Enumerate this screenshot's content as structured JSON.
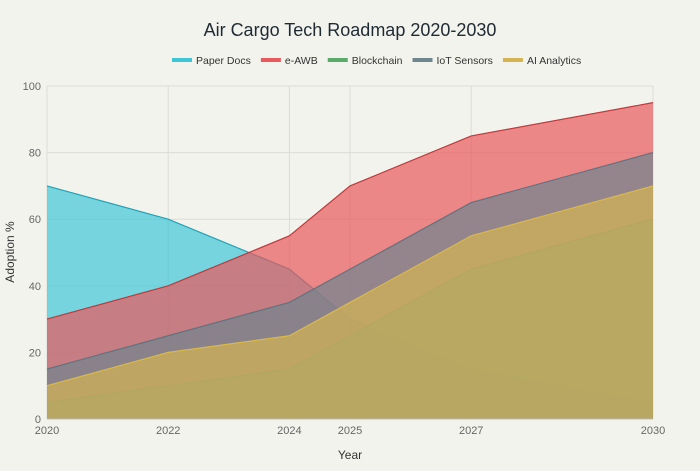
{
  "chart_data": {
    "type": "area",
    "title": "Air Cargo Tech Roadmap 2020-2030",
    "xlabel": "Year",
    "ylabel": "Adoption %",
    "x": [
      2020,
      2022,
      2024,
      2025,
      2027,
      2030
    ],
    "xlim": [
      2020,
      2030
    ],
    "ylim": [
      0,
      100
    ],
    "yticks": [
      0,
      20,
      40,
      60,
      80,
      100
    ],
    "grid": true,
    "legend_placement": "top-center",
    "background": "#f3f3ee",
    "series": [
      {
        "name": "Paper Docs",
        "values": [
          70,
          60,
          45,
          30,
          15,
          5
        ],
        "line": "#1fa3b5",
        "fill": "#3fc6d6"
      },
      {
        "name": "e-AWB",
        "values": [
          30,
          40,
          55,
          70,
          85,
          95
        ],
        "line": "#c0393b",
        "fill": "#e8595c"
      },
      {
        "name": "Blockchain",
        "values": [
          5,
          10,
          15,
          25,
          45,
          60
        ],
        "line": "#3f9a5a",
        "fill": "#5aaa6c"
      },
      {
        "name": "IoT Sensors",
        "values": [
          15,
          25,
          35,
          45,
          65,
          80
        ],
        "line": "#5d7480",
        "fill": "#6f858f"
      },
      {
        "name": "AI Analytics",
        "values": [
          10,
          20,
          25,
          35,
          55,
          70
        ],
        "line": "#d9b84a",
        "fill": "#d4b452"
      }
    ]
  }
}
